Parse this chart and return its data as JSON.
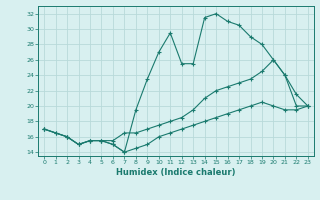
{
  "line1_x": [
    0,
    1,
    2,
    3,
    4,
    5,
    6,
    7,
    8,
    9,
    10,
    11,
    12,
    13,
    14,
    15,
    16,
    17,
    18,
    19,
    20,
    21,
    22,
    23
  ],
  "line1_y": [
    17,
    16.5,
    16,
    15,
    15.5,
    15.5,
    15,
    14,
    19.5,
    23.5,
    27,
    29.5,
    25.5,
    25.5,
    31.5,
    32,
    31,
    30.5,
    29,
    28,
    26,
    24,
    21.5,
    20
  ],
  "line2_x": [
    0,
    2,
    3,
    4,
    5,
    6,
    7,
    8,
    9,
    10,
    11,
    12,
    13,
    14,
    15,
    16,
    17,
    18,
    19,
    20,
    21,
    22,
    23
  ],
  "line2_y": [
    17,
    16,
    15,
    15.5,
    15.5,
    15.5,
    16.5,
    16.5,
    17,
    17.5,
    18,
    18.5,
    19.5,
    21,
    22,
    22.5,
    23,
    23.5,
    24.5,
    26,
    24,
    20,
    20
  ],
  "line3_x": [
    0,
    1,
    2,
    3,
    4,
    5,
    6,
    7,
    8,
    9,
    10,
    11,
    12,
    13,
    14,
    15,
    16,
    17,
    18,
    19,
    20,
    21,
    22,
    23
  ],
  "line3_y": [
    17,
    16.5,
    16,
    15,
    15.5,
    15.5,
    15,
    14,
    14.5,
    15,
    16,
    16.5,
    17,
    17.5,
    18,
    18.5,
    19,
    19.5,
    20,
    20.5,
    20,
    19.5,
    19.5,
    20
  ],
  "line_color": "#1a7a6e",
  "bg_color": "#d8f0f0",
  "grid_color": "#b8dada",
  "xlabel": "Humidex (Indice chaleur)",
  "xlim": [
    -0.5,
    23.5
  ],
  "ylim": [
    13.5,
    33
  ],
  "yticks": [
    14,
    16,
    18,
    20,
    22,
    24,
    26,
    28,
    30,
    32
  ],
  "xticks": [
    0,
    1,
    2,
    3,
    4,
    5,
    6,
    7,
    8,
    9,
    10,
    11,
    12,
    13,
    14,
    15,
    16,
    17,
    18,
    19,
    20,
    21,
    22,
    23
  ],
  "marker": "+",
  "markersize": 3.5,
  "linewidth": 0.8
}
